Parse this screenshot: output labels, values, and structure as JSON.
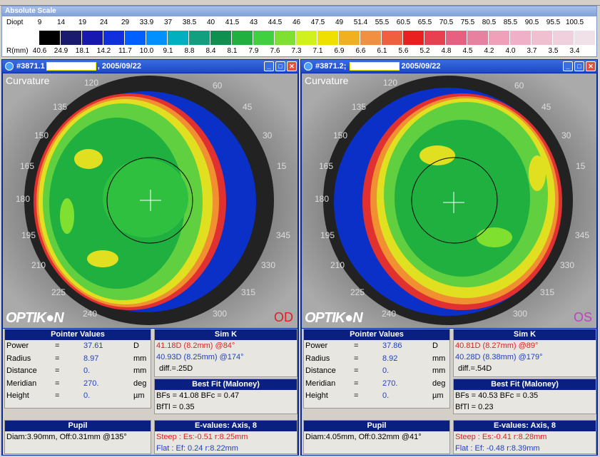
{
  "scale": {
    "title": "Absolute Scale",
    "diopt_label": "Diopt",
    "r_label": "R(mm)",
    "diopt": [
      "9",
      "14",
      "19",
      "24",
      "29",
      "33.9",
      "37",
      "38.5",
      "40",
      "41.5",
      "43",
      "44.5",
      "46",
      "47.5",
      "49",
      "51.4",
      "55.5",
      "60.5",
      "65.5",
      "70.5",
      "75.5",
      "80.5",
      "85.5",
      "90.5",
      "95.5",
      "100.5"
    ],
    "r": [
      "40.6",
      "24.9",
      "18.1",
      "14.2",
      "11.7",
      "10.0",
      "9.1",
      "8.8",
      "8.4",
      "8.1",
      "7.9",
      "7.6",
      "7.3",
      "7.1",
      "6.9",
      "6.6",
      "6.1",
      "5.6",
      "5.2",
      "4.8",
      "4.5",
      "4.2",
      "4.0",
      "3.7",
      "3.5",
      "3.4"
    ],
    "colors": [
      "#000000",
      "#1a1a6e",
      "#1818b0",
      "#1030e0",
      "#0060ff",
      "#0090ff",
      "#00b0c0",
      "#10a080",
      "#109050",
      "#20b040",
      "#40d040",
      "#80e030",
      "#d0f020",
      "#f0e000",
      "#f0b020",
      "#f09040",
      "#f06040",
      "#e82020",
      "#e84050",
      "#e86080",
      "#e880a0",
      "#f0a0b8",
      "#f0b0c8",
      "#f0c0d0",
      "#f0d0dc",
      "#f0e0e8"
    ]
  },
  "left": {
    "title_id": "#3871.1",
    "title_date": ", 2005/09/22",
    "curvature": "Curvature",
    "brand": "OPTIK●N",
    "eye": "OD",
    "pointer": {
      "header": "Pointer Values",
      "rows": [
        {
          "k": "Power",
          "eq": "=",
          "v": "37.61",
          "u": "D"
        },
        {
          "k": "Radius",
          "eq": "=",
          "v": "8.97",
          "u": "mm"
        },
        {
          "k": "Distance",
          "eq": "=",
          "v": "0.",
          "u": "mm"
        },
        {
          "k": "Meridian",
          "eq": "=",
          "v": "270.",
          "u": "deg"
        },
        {
          "k": "Height",
          "eq": "=",
          "v": "0.",
          "u": "µm"
        }
      ]
    },
    "simk": {
      "header": "Sim K",
      "line1": "41.18D (8.2mm) @84°",
      "line2": "40.93D (8.25mm) @174°",
      "line3": "diff.=.25D"
    },
    "bestfit": {
      "header": "Best Fit (Maloney)",
      "line1": "BFs = 41.08 BFc = 0.47",
      "line2": "BfTl = 0.35"
    },
    "pupil": {
      "header": "Pupil",
      "line1": "Diam:3.90mm, Off:0.31mm @135°"
    },
    "evalues": {
      "header": "E-values: Axis, 8",
      "steep": "Steep :  Es:-0.51 r:8.25mm",
      "flat": "Flat    :  Ef: 0.24 r:8.22mm"
    }
  },
  "right": {
    "title_id": "#3871.2; ",
    "title_date": "2005/09/22",
    "curvature": "Curvature",
    "brand": "OPTIK●N",
    "eye": "OS",
    "pointer": {
      "header": "Pointer Values",
      "rows": [
        {
          "k": "Power",
          "eq": "=",
          "v": "37.86",
          "u": "D"
        },
        {
          "k": "Radius",
          "eq": "=",
          "v": "8.92",
          "u": "mm"
        },
        {
          "k": "Distance",
          "eq": "=",
          "v": "0.",
          "u": "mm"
        },
        {
          "k": "Meridian",
          "eq": "=",
          "v": "270.",
          "u": "deg"
        },
        {
          "k": "Height",
          "eq": "=",
          "v": "0.",
          "u": "µm"
        }
      ]
    },
    "simk": {
      "header": "Sim K",
      "line1": "40.81D (8.27mm) @89°",
      "line2": "40.28D (8.38mm) @179°",
      "line3": "diff.=.54D"
    },
    "bestfit": {
      "header": "Best Fit (Maloney)",
      "line1": "BFs = 40.53 BFc = 0.35",
      "line2": "BfTl = 0.23"
    },
    "pupil": {
      "header": "Pupil",
      "line1": "Diam:4.05mm, Off:0.32mm @41°"
    },
    "evalues": {
      "header": "E-values: Axis, 8",
      "steep": "Steep :  Es:-0.41 r:8.28mm",
      "flat": "Flat    :  Ef: -0.48 r:8.39mm"
    }
  },
  "degrees": [
    "120",
    "60",
    "135",
    "45",
    "150",
    "30",
    "165",
    "15",
    "180",
    "195",
    "345",
    "210",
    "330",
    "225",
    "315",
    "240",
    "300"
  ]
}
